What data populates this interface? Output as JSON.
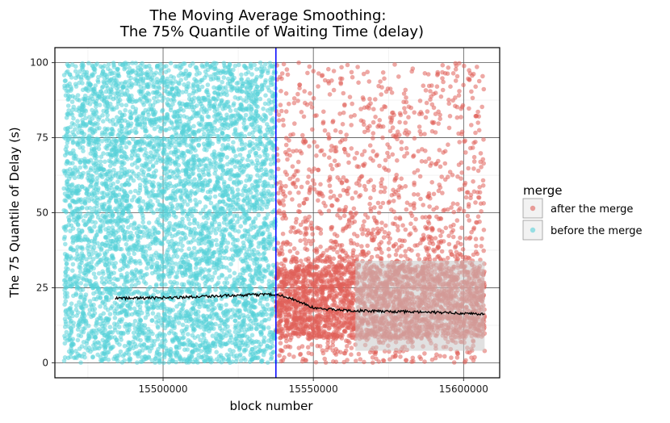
{
  "chart_data": {
    "type": "scatter",
    "title_lines": [
      "The Moving Average Smoothing:",
      "The 75% Quantile of Waiting Time (delay)"
    ],
    "xlabel": "block number",
    "ylabel": "The 75 Quantile of Delay (s)",
    "xlim": [
      15464000,
      15612000
    ],
    "ylim": [
      -5,
      105
    ],
    "x_ticks": [
      15500000,
      15550000,
      15600000
    ],
    "x_tick_labels": [
      "15500000",
      "15550000",
      "15600000"
    ],
    "y_ticks": [
      0,
      25,
      50,
      75,
      100
    ],
    "y_tick_labels": [
      "0",
      "25",
      "50",
      "75",
      "100"
    ],
    "grid": true,
    "merge_block": 15537546,
    "merge_line_color": "#0000ff",
    "series": [
      {
        "name": "before the merge",
        "color": "#58d1d9",
        "x_range": [
          15467000,
          15537500
        ],
        "y_range": [
          0,
          100
        ],
        "dense_band": [
          0,
          100
        ]
      },
      {
        "name": "after the merge",
        "color": "#e0605a",
        "x_range": [
          15537600,
          15607000
        ],
        "y_range": [
          0,
          100
        ],
        "dense_band": [
          8,
          32
        ]
      }
    ],
    "moving_average": {
      "name": "moving average",
      "color": "#000000",
      "x": [
        15484000,
        15495000,
        15505000,
        15515000,
        15525000,
        15530000,
        15535000,
        15538000,
        15541000,
        15545000,
        15550000,
        15555000,
        15560000,
        15570000,
        15580000,
        15590000,
        15600000,
        15607000
      ],
      "y": [
        21.5,
        21.6,
        21.8,
        22.2,
        22.4,
        22.6,
        22.8,
        22.7,
        22.0,
        20.5,
        18.3,
        17.8,
        17.5,
        17.2,
        17.0,
        16.8,
        16.5,
        16.2
      ]
    },
    "confidence_band": {
      "color": "#c8c8c8",
      "x_range": [
        15564000,
        15607000
      ],
      "upper": 34,
      "lower": 4
    },
    "legend": {
      "title": "merge",
      "position": "right",
      "entries": [
        {
          "label": "after the merge",
          "color": "#e0605a"
        },
        {
          "label": "before the merge",
          "color": "#58d1d9"
        }
      ]
    }
  }
}
